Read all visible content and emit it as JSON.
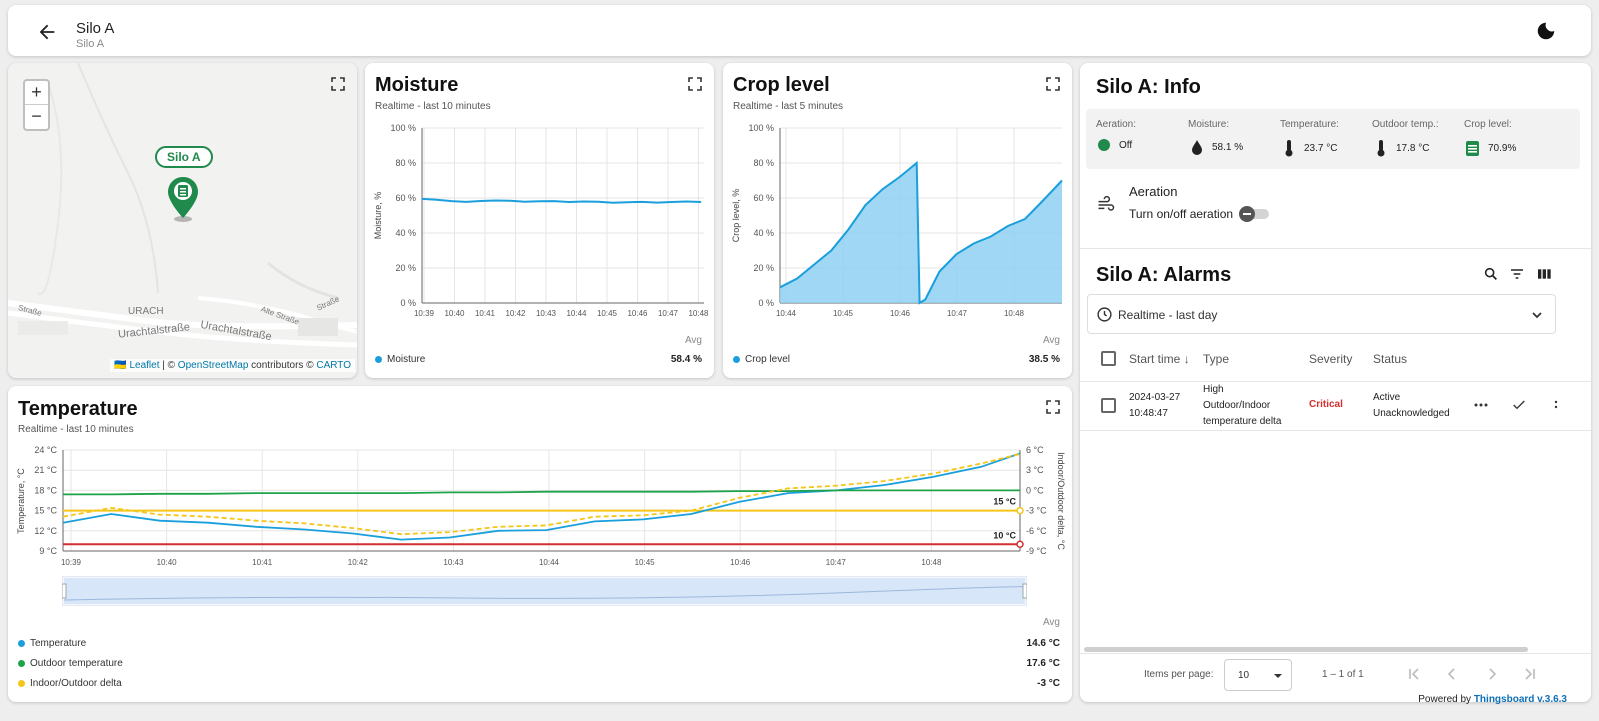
{
  "header": {
    "title": "Silo A",
    "subtitle": "Silo A"
  },
  "map": {
    "zoom_in": "+",
    "zoom_out": "−",
    "marker_label": "Silo A",
    "place_urach": "URACH",
    "street_1": "Urachtalstraße",
    "street_2": "Urachtalstraße",
    "street_3": "Alte Straße",
    "street_4": "Straße",
    "street_5": "Straße",
    "attr_prefix": "🇺🇦 ",
    "attr_leaflet": "Leaflet",
    "attr_sep": " | © ",
    "attr_osm": "OpenStreetMap",
    "attr_mid": " contributors © ",
    "attr_carto": "CARTO"
  },
  "moisture": {
    "title": "Moisture",
    "subtitle": "Realtime - last 10 minutes",
    "ylabel": "Moisture, %",
    "avg_label": "Avg",
    "legend": "Moisture",
    "legend_value": "58.4 %",
    "series_color": "#1a9fdc"
  },
  "crop": {
    "title": "Crop level",
    "subtitle": "Realtime - last 5 minutes",
    "ylabel": "Crop level, %",
    "avg_label": "Avg",
    "legend": "Crop level",
    "legend_value": "38.5 %",
    "series_color": "#1a9fdc"
  },
  "temperature": {
    "title": "Temperature",
    "subtitle": "Realtime - last 10 minutes",
    "ylabel_left": "Temperature, °C",
    "ylabel_right": "Indoor/Outdoor delta, °C",
    "avg_label": "Avg",
    "threshold_high": "15 °C",
    "threshold_low": "10 °C",
    "legend": [
      {
        "name": "Temperature",
        "value": "14.6 °C",
        "color": "#1a9fdc"
      },
      {
        "name": "Outdoor temperature",
        "value": "17.6 °C",
        "color": "#1fa34a"
      },
      {
        "name": "Indoor/Outdoor delta",
        "value": "-3 °C",
        "color": "#f5c518"
      }
    ]
  },
  "info": {
    "title": "Silo A: Info",
    "items": [
      {
        "label": "Aeration:",
        "value": "Off"
      },
      {
        "label": "Moisture:",
        "value": "58.1 %"
      },
      {
        "label": "Temperature:",
        "value": "23.7 °C"
      },
      {
        "label": "Outdoor temp.:",
        "value": "17.8 °C"
      },
      {
        "label": "Crop level:",
        "value": "70.9%"
      }
    ],
    "aeration_title": "Aeration",
    "aeration_toggle_label": "Turn on/off aeration",
    "aeration_on": false
  },
  "alarms": {
    "title": "Silo A: Alarms",
    "timewindow": "Realtime - last day",
    "columns": {
      "start_time": "Start time",
      "type": "Type",
      "severity": "Severity",
      "status": "Status"
    },
    "rows": [
      {
        "date": "2024-03-27",
        "time": "10:48:47",
        "type_1": "High",
        "type_2": "Outdoor/Indoor",
        "type_3": "temperature delta",
        "severity": "Critical",
        "status_1": "Active",
        "status_2": "Unacknowledged"
      }
    ],
    "items_per_page_label": "Items per page:",
    "items_per_page": "10",
    "range": "1 – 1 of 1"
  },
  "footer": {
    "powered_by": "Powered by ",
    "brand": "Thingsboard v.3.6.3"
  },
  "colors": {
    "accent": "#1a9fdc",
    "green": "#1f8a4c",
    "critical": "#d32f2f",
    "threshold_yellow": "#f5c518",
    "threshold_red": "#d32f2f"
  },
  "chart_data": [
    {
      "type": "line",
      "title": "Moisture",
      "ylabel": "Moisture, %",
      "ylim": [
        0,
        100
      ],
      "yticks": [
        "0 %",
        "20 %",
        "40 %",
        "60 %",
        "80 %",
        "100 %"
      ],
      "xticks": [
        "10:39",
        "10:40",
        "10:41",
        "10:42",
        "10:43",
        "10:44",
        "10:45",
        "10:46",
        "10:47",
        "10:48"
      ],
      "x_minutes": [
        0,
        0.5,
        1,
        1.5,
        2,
        2.5,
        3,
        3.5,
        4,
        4.5,
        5,
        5.5,
        6,
        6.5,
        7,
        7.5,
        8,
        8.5,
        9,
        9.5
      ],
      "series": [
        {
          "name": "Moisture",
          "values": [
            59.5,
            59,
            58.2,
            57.8,
            58.3,
            58.6,
            58.4,
            57.9,
            58.1,
            58.2,
            57.7,
            58,
            57.9,
            57.3,
            57.6,
            57.8,
            57.4,
            57.7,
            58,
            57.7
          ]
        }
      ]
    },
    {
      "type": "area",
      "title": "Crop level",
      "ylabel": "Crop level, %",
      "ylim": [
        0,
        100
      ],
      "yticks": [
        "0 %",
        "20 %",
        "40 %",
        "60 %",
        "80 %",
        "100 %"
      ],
      "xticks": [
        "10:44",
        "10:45",
        "10:46",
        "10:47",
        "10:48"
      ],
      "x_minutes": [
        0,
        0.3,
        0.6,
        0.9,
        1.2,
        1.5,
        1.8,
        2.1,
        2.4,
        2.45,
        2.55,
        2.8,
        3.1,
        3.4,
        3.7,
        4.0,
        4.3,
        4.6,
        4.95
      ],
      "series": [
        {
          "name": "Crop level",
          "values": [
            9,
            14,
            22,
            30,
            42,
            56,
            65,
            72,
            80,
            0,
            2,
            18,
            28,
            34,
            38,
            44,
            48,
            58,
            70
          ]
        }
      ]
    },
    {
      "type": "line",
      "title": "Temperature",
      "ylabel": "Temperature, °C",
      "ylabel_right": "Indoor/Outdoor delta, °C",
      "ylim": [
        9,
        24
      ],
      "ylim_right": [
        -9,
        6
      ],
      "yticks": [
        "9 °C",
        "12 °C",
        "15 °C",
        "18 °C",
        "21 °C",
        "24 °C"
      ],
      "yticks_right": [
        "-9 °C",
        "-6 °C",
        "-3 °C",
        "0 °C",
        "3 °C",
        "6 °C"
      ],
      "xticks": [
        "10:39",
        "10:40",
        "10:41",
        "10:42",
        "10:43",
        "10:44",
        "10:45",
        "10:46",
        "10:47",
        "10:48"
      ],
      "thresholds": [
        {
          "label": "15 °C",
          "value": 15,
          "color": "#f5c518"
        },
        {
          "label": "10 °C",
          "value": 10,
          "color": "#d32f2f"
        }
      ],
      "x_minutes": [
        0,
        0.5,
        1,
        1.5,
        2,
        2.5,
        3,
        3.5,
        4,
        4.5,
        5,
        5.5,
        6,
        6.5,
        7,
        7.5,
        8,
        8.5,
        9,
        9.5,
        9.9
      ],
      "series": [
        {
          "name": "Temperature",
          "values": [
            13.2,
            14.5,
            13.5,
            13.2,
            12.6,
            12.2,
            11.6,
            10.7,
            11.0,
            12.0,
            12.1,
            13.4,
            13.7,
            14.5,
            16.3,
            17.6,
            18.0,
            18.8,
            20.0,
            21.5,
            23.5
          ]
        },
        {
          "name": "Outdoor temperature",
          "values": [
            17.4,
            17.4,
            17.5,
            17.5,
            17.6,
            17.6,
            17.6,
            17.6,
            17.7,
            17.7,
            17.8,
            17.8,
            17.8,
            17.8,
            17.9,
            17.9,
            18.0,
            18.0,
            18.0,
            18.0,
            18.0
          ]
        },
        {
          "name": "Indoor/Outdoor delta",
          "values": [
            -3.9,
            -2.6,
            -3.6,
            -3.9,
            -4.5,
            -4.9,
            -5.6,
            -6.5,
            -6.2,
            -5.4,
            -5.2,
            -3.9,
            -3.7,
            -3.0,
            -1.1,
            0.3,
            0.7,
            1.4,
            2.5,
            4.0,
            5.4
          ]
        }
      ]
    }
  ]
}
